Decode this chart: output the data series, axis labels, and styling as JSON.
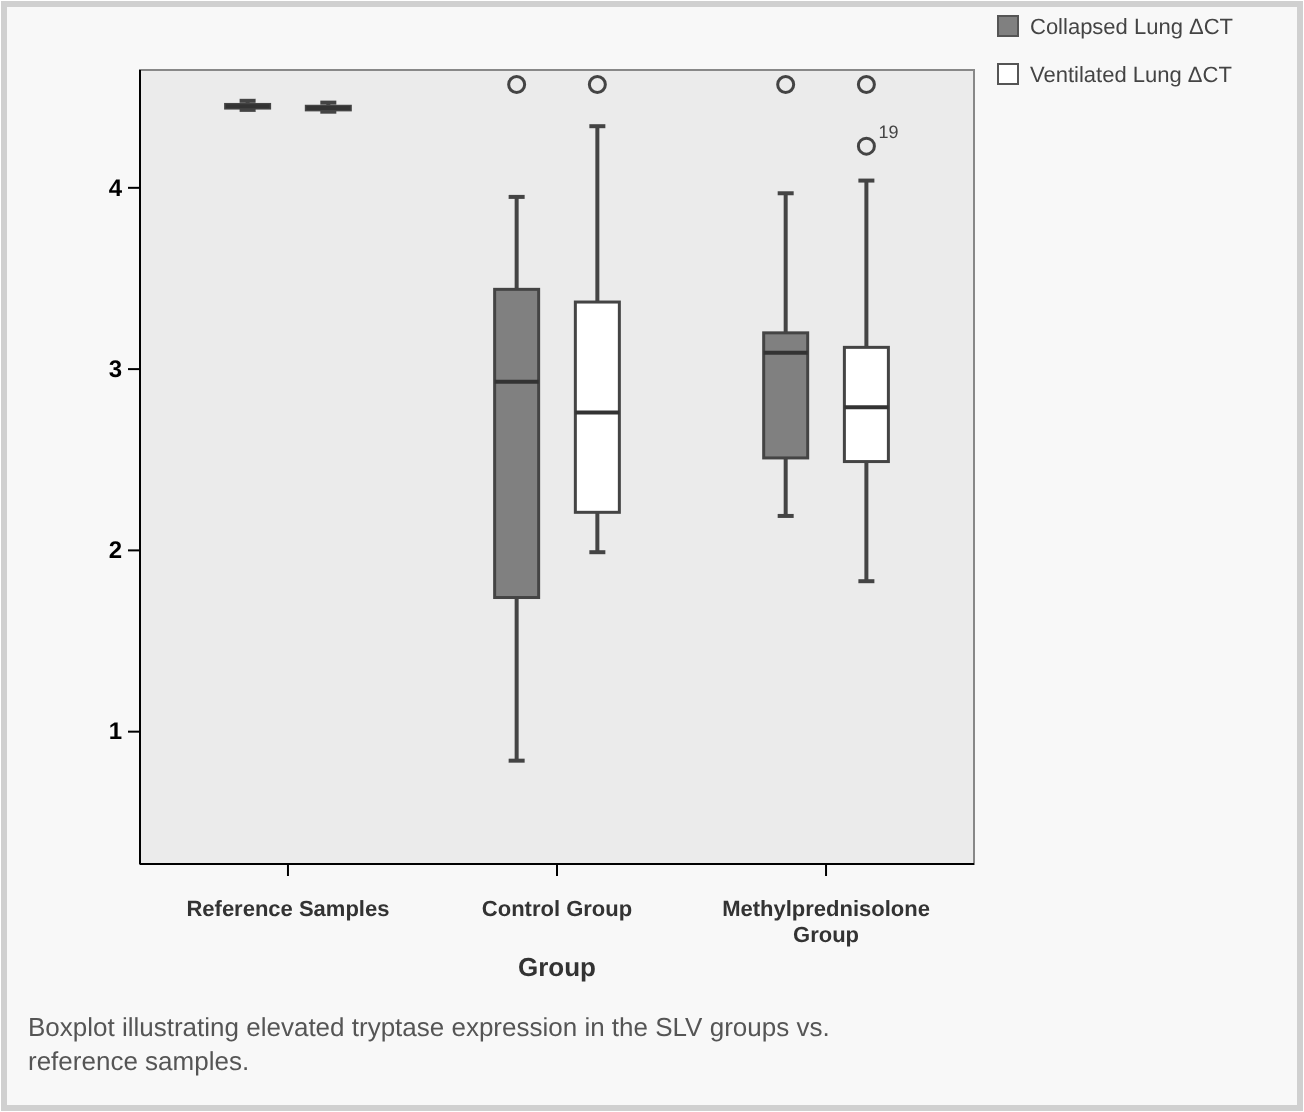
{
  "chart_data": {
    "type": "box",
    "categories": [
      "Reference Samples",
      "Control Group",
      "Methylprednisolone Group"
    ],
    "xlabel": "Group",
    "ylim": [
      0.27,
      4.65
    ],
    "yticks": [
      1,
      2,
      3,
      4
    ],
    "legend": "top right",
    "series": [
      {
        "name": "Collapsed Lung ΔCT",
        "color": "#808080",
        "boxes": [
          {
            "low": 4.43,
            "q1": 4.44,
            "median": 4.45,
            "q3": 4.46,
            "high": 4.48
          },
          {
            "low": 0.84,
            "q1": 1.74,
            "median": 2.93,
            "q3": 3.44,
            "high": 3.95,
            "outliers": [
              4.57
            ]
          },
          {
            "low": 2.19,
            "q1": 2.51,
            "median": 3.09,
            "q3": 3.2,
            "high": 3.97,
            "outliers": [
              4.57
            ]
          }
        ]
      },
      {
        "name": "Ventilated Lung ΔCT",
        "color": "#ffffff",
        "boxes": [
          {
            "low": 4.42,
            "q1": 4.43,
            "median": 4.44,
            "q3": 4.45,
            "high": 4.47
          },
          {
            "low": 1.99,
            "q1": 2.21,
            "median": 2.76,
            "q3": 3.37,
            "high": 4.34,
            "outliers": [
              4.57
            ]
          },
          {
            "low": 1.83,
            "q1": 2.49,
            "median": 2.79,
            "q3": 3.12,
            "high": 4.04,
            "outliers": [
              4.23,
              4.57
            ]
          }
        ]
      }
    ],
    "annotations": [
      "19",
      "Boxplot illustrating elevated tryptase expression in the SLV groups vs. reference samples."
    ]
  }
}
